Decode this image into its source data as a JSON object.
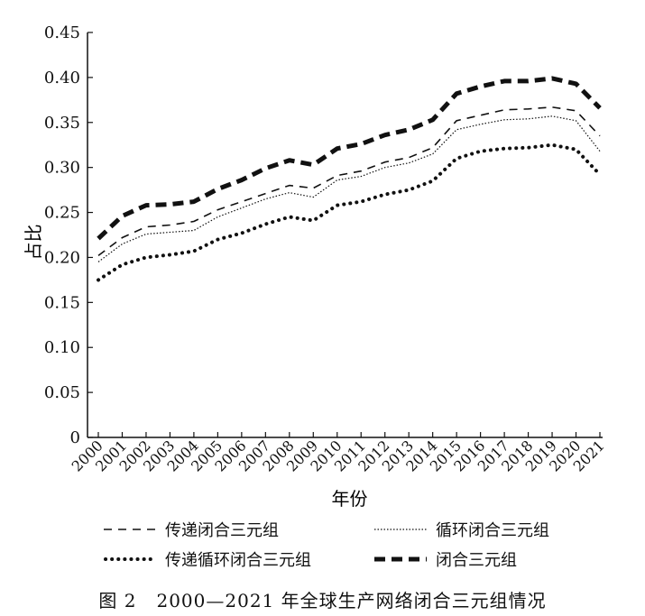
{
  "chart_data": {
    "type": "line",
    "title": "",
    "xlabel": "年份",
    "ylabel": "占比",
    "ylim": [
      0,
      0.45
    ],
    "yticks": [
      "0",
      "0.05",
      "0.10",
      "0.15",
      "0.20",
      "0.25",
      "0.30",
      "0.35",
      "0.40",
      "0.45"
    ],
    "categories": [
      "2000",
      "2001",
      "2002",
      "2003",
      "2004",
      "2005",
      "2006",
      "2007",
      "2008",
      "2009",
      "2010",
      "2011",
      "2012",
      "2013",
      "2014",
      "2015",
      "2016",
      "2017",
      "2018",
      "2019",
      "2020",
      "2021"
    ],
    "legend_placement": "below",
    "series": [
      {
        "name": "传递闭合三元组",
        "style": "dashed",
        "color": "#111111",
        "values": [
          0.202,
          0.222,
          0.234,
          0.236,
          0.24,
          0.253,
          0.262,
          0.271,
          0.28,
          0.277,
          0.291,
          0.296,
          0.306,
          0.311,
          0.322,
          0.352,
          0.358,
          0.364,
          0.365,
          0.367,
          0.363,
          0.335
        ]
      },
      {
        "name": "循环闭合三元组",
        "style": "dotted-thin",
        "color": "#111111",
        "values": [
          0.195,
          0.215,
          0.226,
          0.228,
          0.23,
          0.245,
          0.255,
          0.265,
          0.272,
          0.267,
          0.286,
          0.29,
          0.3,
          0.305,
          0.315,
          0.342,
          0.348,
          0.353,
          0.354,
          0.357,
          0.352,
          0.318
        ]
      },
      {
        "name": "传递循环闭合三元组",
        "style": "dotted-bold",
        "color": "#111111",
        "values": [
          0.175,
          0.192,
          0.2,
          0.203,
          0.207,
          0.22,
          0.227,
          0.237,
          0.245,
          0.241,
          0.258,
          0.262,
          0.27,
          0.275,
          0.285,
          0.31,
          0.318,
          0.321,
          0.322,
          0.325,
          0.32,
          0.292
        ]
      },
      {
        "name": "闭合三元组",
        "style": "dashed-bold",
        "color": "#111111",
        "values": [
          0.221,
          0.246,
          0.258,
          0.259,
          0.262,
          0.276,
          0.286,
          0.299,
          0.308,
          0.303,
          0.321,
          0.326,
          0.336,
          0.342,
          0.353,
          0.382,
          0.39,
          0.396,
          0.396,
          0.399,
          0.393,
          0.366
        ]
      }
    ]
  },
  "caption": {
    "fig_num": "图 2",
    "text": "2000—2021 年全球生产网络闭合三元组情况"
  }
}
